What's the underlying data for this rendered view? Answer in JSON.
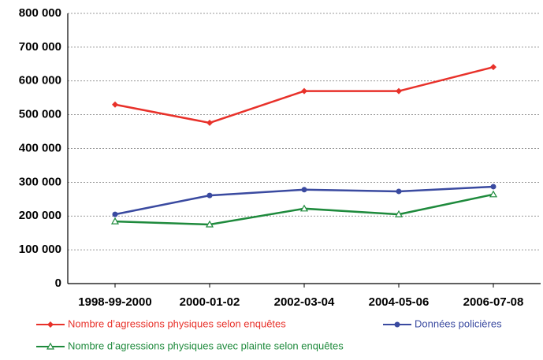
{
  "chart_data": {
    "type": "line",
    "categories": [
      "1998-99-2000",
      "2000-01-02",
      "2002-03-04",
      "2004-05-06",
      "2006-07-08"
    ],
    "series": [
      {
        "name": "Nombre d’agressions physiques selon enquêtes",
        "color": "#e8312a",
        "marker": "diamond",
        "values": [
          530000,
          476000,
          570000,
          570000,
          641000
        ]
      },
      {
        "name": "Données policières",
        "color": "#3a4aa0",
        "marker": "circle",
        "values": [
          205000,
          261000,
          278000,
          273000,
          287000
        ]
      },
      {
        "name": "Nombre d’agressions physiques avec plainte selon enquêtes",
        "color": "#1e8a3c",
        "marker": "triangle-open",
        "values": [
          184000,
          175000,
          222000,
          205000,
          264000
        ]
      }
    ],
    "ylim": [
      0,
      800000
    ],
    "yticks": [
      {
        "value": 0,
        "label": "0"
      },
      {
        "value": 100000,
        "label": "100 000"
      },
      {
        "value": 200000,
        "label": "200 000"
      },
      {
        "value": 300000,
        "label": "300 000"
      },
      {
        "value": 400000,
        "label": "400 000"
      },
      {
        "value": 500000,
        "label": "500 000"
      },
      {
        "value": 600000,
        "label": "600 000"
      },
      {
        "value": 700000,
        "label": "700 000"
      },
      {
        "value": 800000,
        "label": "800 000"
      }
    ],
    "grid": true
  }
}
